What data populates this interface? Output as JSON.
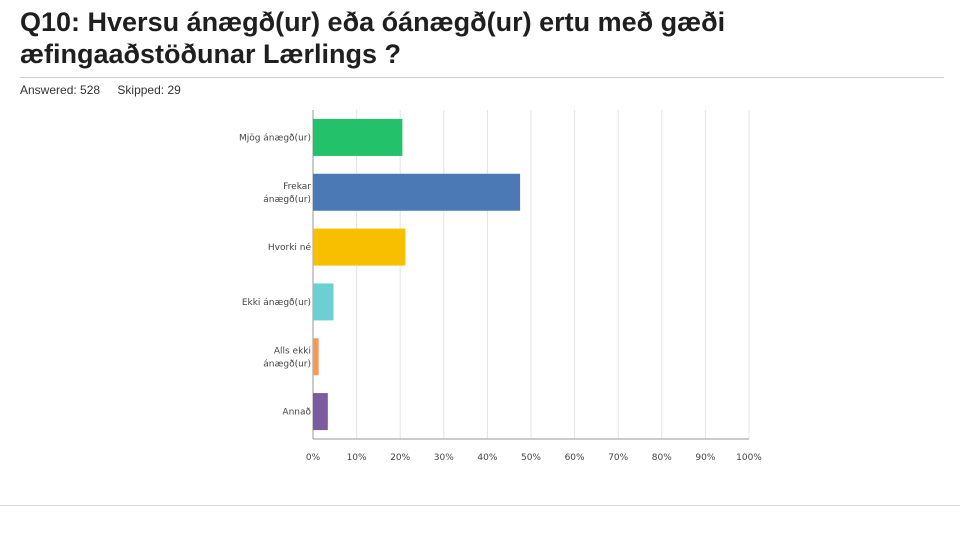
{
  "page": {
    "title": "Q10: Hversu ánægð(ur) eða óánægð(ur) ertu með gæði æfingaaðstöðunar Lærlings ?",
    "answered_label": "Answered: 528",
    "skipped_label": "Skipped: 29"
  },
  "chart_data": {
    "type": "bar",
    "orientation": "horizontal",
    "categories": [
      [
        "Mjög ánægð(ur)"
      ],
      [
        "Frekar",
        "ánægð(ur)"
      ],
      [
        "Hvorki né"
      ],
      [
        "Ekki ánægð(ur)"
      ],
      [
        "Alls ekki",
        "ánægð(ur)"
      ],
      [
        "Annað"
      ]
    ],
    "values": [
      20.5,
      47.5,
      21.2,
      4.7,
      1.3,
      3.4
    ],
    "colors": [
      "#22c16a",
      "#4b79b6",
      "#f8bf00",
      "#6ccfd1",
      "#f59a58",
      "#7b5c9f"
    ],
    "xlim": [
      0,
      100
    ],
    "ticks": [
      "0%",
      "10%",
      "20%",
      "30%",
      "40%",
      "50%",
      "60%",
      "70%",
      "80%",
      "90%",
      "100%"
    ],
    "grid": true
  }
}
